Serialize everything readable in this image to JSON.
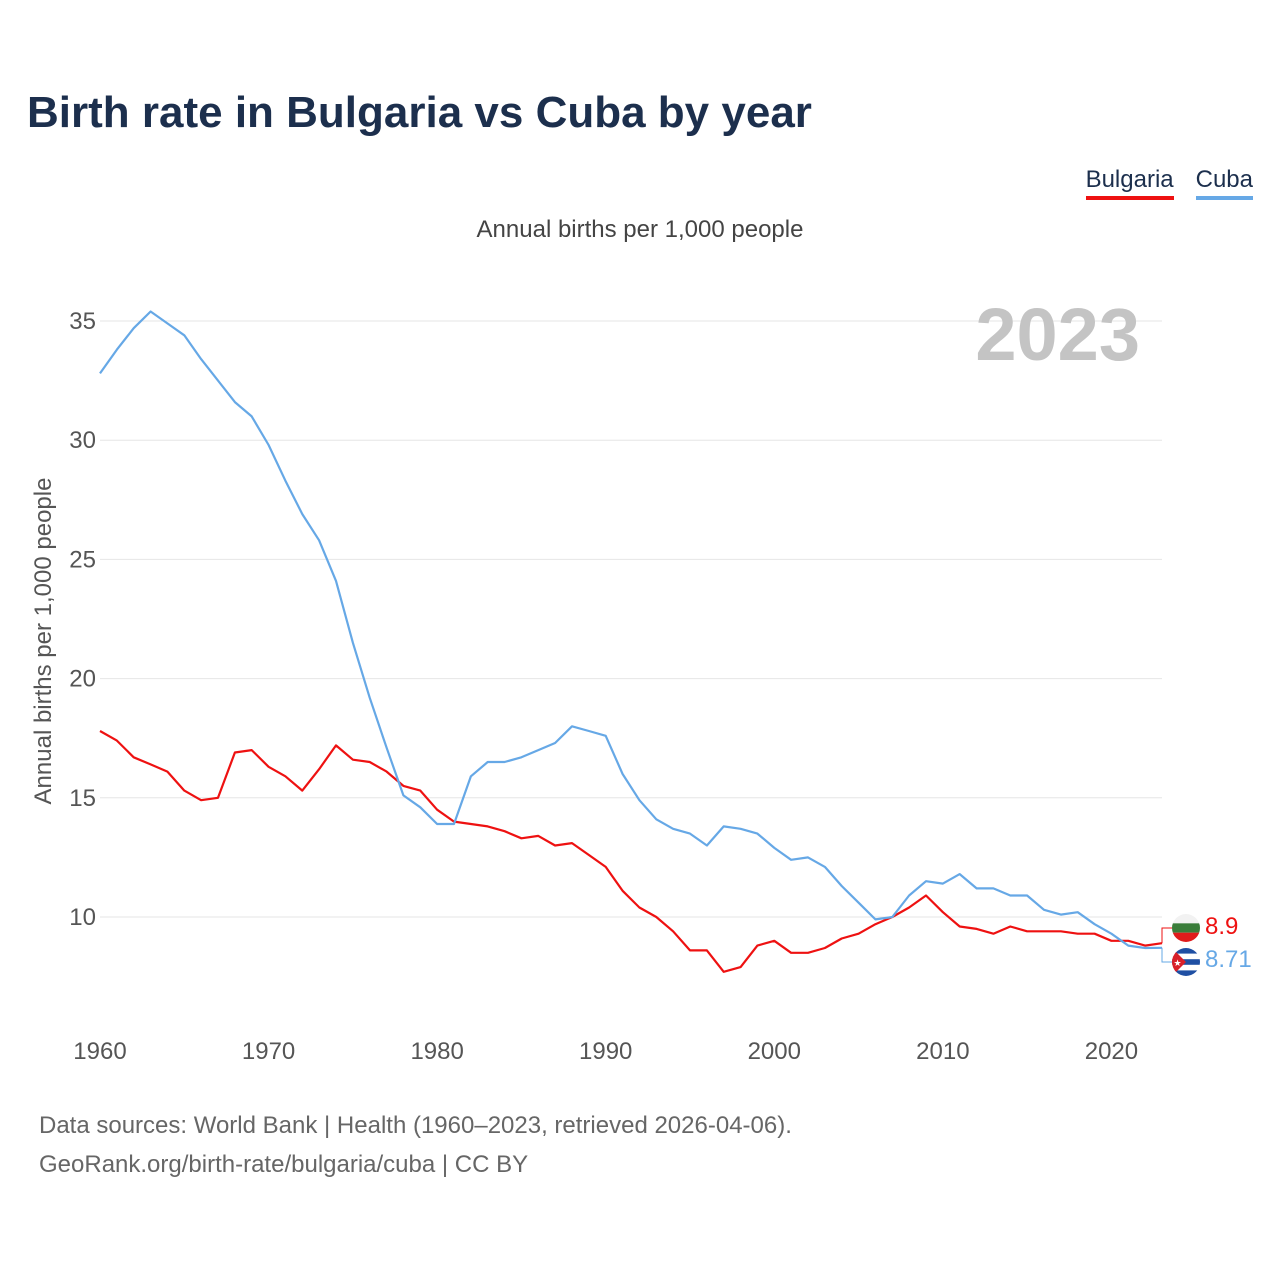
{
  "title": "Birth rate in Bulgaria vs Cuba by year",
  "legend": [
    "Bulgaria",
    "Cuba"
  ],
  "subtitle": "Annual births per 1,000 people",
  "footer": {
    "line1": "Data sources: World Bank | Health (1960–2023, retrieved 2026-04-06).",
    "line2": "GeoRank.org/birth-rate/bulgaria/cuba | CC BY"
  },
  "chart_data": {
    "type": "line",
    "title": "Birth rate in Bulgaria vs Cuba by year",
    "ylabel": "Annual births per 1,000 people",
    "xlabel": "",
    "year_label": "2023",
    "xlim": [
      1960,
      2023
    ],
    "ylim": [
      6,
      36
    ],
    "x_ticks": [
      1960,
      1970,
      1980,
      1990,
      2000,
      2010,
      2020
    ],
    "y_ticks": [
      10,
      15,
      20,
      25,
      30,
      35
    ],
    "grid": true,
    "legend_position": "top-right",
    "x": [
      1960,
      1961,
      1962,
      1963,
      1964,
      1965,
      1966,
      1967,
      1968,
      1969,
      1970,
      1971,
      1972,
      1973,
      1974,
      1975,
      1976,
      1977,
      1978,
      1979,
      1980,
      1981,
      1982,
      1983,
      1984,
      1985,
      1986,
      1987,
      1988,
      1989,
      1990,
      1991,
      1992,
      1993,
      1994,
      1995,
      1996,
      1997,
      1998,
      1999,
      2000,
      2001,
      2002,
      2003,
      2004,
      2005,
      2006,
      2007,
      2008,
      2009,
      2010,
      2011,
      2012,
      2013,
      2014,
      2015,
      2016,
      2017,
      2018,
      2019,
      2020,
      2021,
      2022,
      2023
    ],
    "series": [
      {
        "name": "Bulgaria",
        "color": "#ee1111",
        "end_label": "8.9",
        "values": [
          17.8,
          17.4,
          16.7,
          16.4,
          16.1,
          15.3,
          14.9,
          15.0,
          16.9,
          17.0,
          16.3,
          15.9,
          15.3,
          16.2,
          17.2,
          16.6,
          16.5,
          16.1,
          15.5,
          15.3,
          14.5,
          14.0,
          13.9,
          13.8,
          13.6,
          13.3,
          13.4,
          13.0,
          13.1,
          12.6,
          12.1,
          11.1,
          10.4,
          10.0,
          9.4,
          8.6,
          8.6,
          7.7,
          7.9,
          8.8,
          9.0,
          8.5,
          8.5,
          8.7,
          9.1,
          9.3,
          9.7,
          10.0,
          10.4,
          10.9,
          10.2,
          9.6,
          9.5,
          9.3,
          9.6,
          9.4,
          9.4,
          9.4,
          9.3,
          9.3,
          9.0,
          9.0,
          8.8,
          8.9
        ]
      },
      {
        "name": "Cuba",
        "color": "#66a8e6",
        "end_label": "8.71",
        "values": [
          32.8,
          33.8,
          34.7,
          35.4,
          34.9,
          34.4,
          33.4,
          32.5,
          31.6,
          31.0,
          29.8,
          28.3,
          26.9,
          25.8,
          24.1,
          21.5,
          19.2,
          17.1,
          15.1,
          14.6,
          13.9,
          13.9,
          15.9,
          16.5,
          16.5,
          16.7,
          17.0,
          17.3,
          18.0,
          17.8,
          17.6,
          16.0,
          14.9,
          14.1,
          13.7,
          13.5,
          13.0,
          13.8,
          13.7,
          13.5,
          12.9,
          12.4,
          12.5,
          12.1,
          11.3,
          10.6,
          9.9,
          10.0,
          10.9,
          11.5,
          11.4,
          11.8,
          11.2,
          11.2,
          10.9,
          10.9,
          10.3,
          10.1,
          10.2,
          9.7,
          9.3,
          8.8,
          8.7,
          8.71
        ]
      }
    ]
  }
}
